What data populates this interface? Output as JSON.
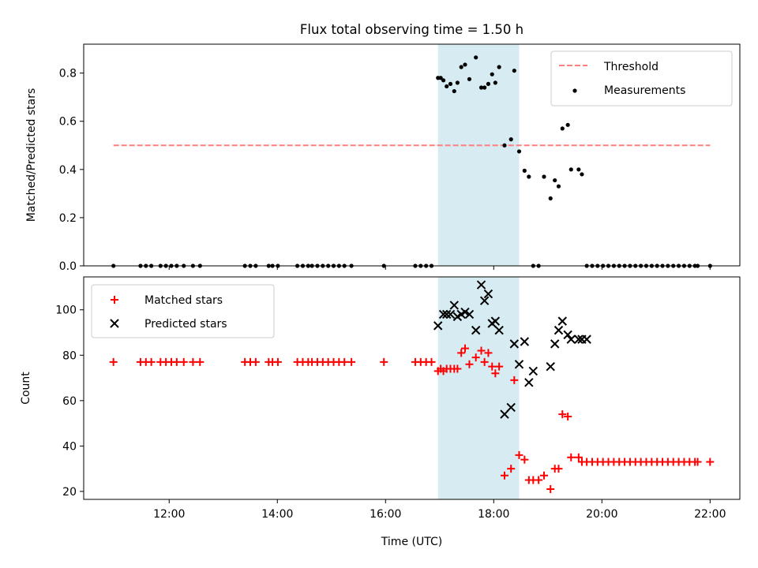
{
  "chart_data": [
    {
      "type": "scatter",
      "title": "Flux total observing time = 1.50 h",
      "xlabel": "",
      "ylabel": "Matched/Predicted stars",
      "xlim": [
        10.42,
        22.55
      ],
      "ylim": [
        0.0,
        0.92
      ],
      "x_ticks": [
        "12:00",
        "14:00",
        "16:00",
        "18:00",
        "20:00",
        "22:00"
      ],
      "x_tick_values": [
        12,
        14,
        16,
        18,
        20,
        22
      ],
      "y_ticks": [
        "0.0",
        "0.2",
        "0.4",
        "0.6",
        "0.8"
      ],
      "y_tick_values": [
        0.0,
        0.2,
        0.4,
        0.6,
        0.8
      ],
      "shaded_span": [
        16.97,
        18.47
      ],
      "legend_position": "top-right",
      "threshold": {
        "name": "Threshold",
        "value": 0.5,
        "x_range": [
          10.97,
          22.0
        ],
        "color": "#ff7f7f"
      },
      "series": [
        {
          "name": "Measurements",
          "color": "#000000",
          "marker": "dot",
          "x": [
            10.97,
            11.47,
            11.57,
            11.67,
            11.84,
            11.94,
            12.04,
            12.14,
            12.27,
            12.44,
            12.57,
            13.4,
            13.5,
            13.6,
            13.84,
            13.91,
            14.01,
            14.37,
            14.47,
            14.57,
            14.64,
            14.74,
            14.84,
            14.94,
            15.04,
            15.14,
            15.24,
            15.37,
            15.97,
            16.55,
            16.65,
            16.75,
            16.85,
            16.97,
            17.02,
            17.07,
            17.13,
            17.2,
            17.27,
            17.33,
            17.4,
            17.47,
            17.55,
            17.67,
            17.77,
            17.83,
            17.9,
            17.97,
            18.03,
            18.1,
            18.2,
            18.32,
            18.38,
            18.47,
            18.57,
            18.65,
            18.73,
            18.83,
            18.93,
            19.05,
            19.13,
            19.2,
            19.27,
            19.37,
            19.43,
            19.57,
            19.63,
            19.72,
            19.82,
            19.92,
            20.02,
            20.12,
            20.22,
            20.32,
            20.42,
            20.52,
            20.62,
            20.72,
            20.82,
            20.92,
            21.02,
            21.12,
            21.22,
            21.32,
            21.42,
            21.52,
            21.62,
            21.72,
            21.77,
            22.0
          ],
          "y": [
            0.0,
            0.0,
            0.0,
            0.0,
            0.0,
            0.0,
            0.0,
            0.0,
            0.0,
            0.0,
            0.0,
            0.0,
            0.0,
            0.0,
            0.0,
            0.0,
            0.0,
            0.0,
            0.0,
            0.0,
            0.0,
            0.0,
            0.0,
            0.0,
            0.0,
            0.0,
            0.0,
            0.0,
            0.0,
            0.0,
            0.0,
            0.0,
            0.0,
            0.78,
            0.78,
            0.77,
            0.745,
            0.755,
            0.725,
            0.76,
            0.825,
            0.835,
            0.775,
            0.865,
            0.74,
            0.74,
            0.755,
            0.795,
            0.76,
            0.825,
            0.5,
            0.525,
            0.81,
            0.475,
            0.395,
            0.37,
            0.0,
            0.0,
            0.37,
            0.28,
            0.355,
            0.33,
            0.57,
            0.585,
            0.4,
            0.4,
            0.38,
            0.0,
            0.0,
            0.0,
            0.0,
            0.0,
            0.0,
            0.0,
            0.0,
            0.0,
            0.0,
            0.0,
            0.0,
            0.0,
            0.0,
            0.0,
            0.0,
            0.0,
            0.0,
            0.0,
            0.0,
            0.0,
            0.0,
            0.0
          ]
        }
      ]
    },
    {
      "type": "scatter",
      "title": "",
      "xlabel": "Time (UTC)",
      "ylabel": "Count",
      "xlim": [
        10.42,
        22.55
      ],
      "ylim": [
        16.5,
        114.5
      ],
      "x_ticks": [
        "12:00",
        "14:00",
        "16:00",
        "18:00",
        "20:00",
        "22:00"
      ],
      "x_tick_values": [
        12,
        14,
        16,
        18,
        20,
        22
      ],
      "y_ticks": [
        "20",
        "40",
        "60",
        "80",
        "100"
      ],
      "y_tick_values": [
        20,
        40,
        60,
        80,
        100
      ],
      "shaded_span": [
        16.97,
        18.47
      ],
      "legend_position": "top-left",
      "series": [
        {
          "name": "Matched stars",
          "color": "#ff0000",
          "marker": "plus",
          "x": [
            10.97,
            11.47,
            11.57,
            11.67,
            11.84,
            11.94,
            12.04,
            12.14,
            12.27,
            12.44,
            12.57,
            13.4,
            13.5,
            13.6,
            13.84,
            13.91,
            14.01,
            14.37,
            14.47,
            14.57,
            14.64,
            14.74,
            14.84,
            14.94,
            15.04,
            15.14,
            15.24,
            15.37,
            15.97,
            16.55,
            16.65,
            16.75,
            16.85,
            16.97,
            17.02,
            17.07,
            17.13,
            17.2,
            17.27,
            17.33,
            17.4,
            17.47,
            17.55,
            17.67,
            17.77,
            17.83,
            17.9,
            17.97,
            18.03,
            18.1,
            18.2,
            18.32,
            18.38,
            18.47,
            18.57,
            18.65,
            18.73,
            18.83,
            18.93,
            19.05,
            19.13,
            19.2,
            19.27,
            19.37,
            19.43,
            19.57,
            19.63,
            19.72,
            19.82,
            19.92,
            20.02,
            20.12,
            20.22,
            20.32,
            20.42,
            20.52,
            20.62,
            20.72,
            20.82,
            20.92,
            21.02,
            21.12,
            21.22,
            21.32,
            21.42,
            21.52,
            21.62,
            21.72,
            21.77,
            22.0
          ],
          "y": [
            77,
            77,
            77,
            77,
            77,
            77,
            77,
            77,
            77,
            77,
            77,
            77,
            77,
            77,
            77,
            77,
            77,
            77,
            77,
            77,
            77,
            77,
            77,
            77,
            77,
            77,
            77,
            77,
            77,
            77,
            77,
            77,
            77,
            73,
            74,
            73,
            74,
            74,
            74,
            74,
            81,
            83,
            76,
            79,
            82,
            77,
            81,
            75,
            72,
            75,
            27,
            30,
            69,
            36,
            34,
            25,
            25,
            25,
            27,
            21,
            30,
            30,
            54,
            53,
            35,
            35,
            33,
            33,
            33,
            33,
            33,
            33,
            33,
            33,
            33,
            33,
            33,
            33,
            33,
            33,
            33,
            33,
            33,
            33,
            33,
            33,
            33,
            33,
            33,
            33
          ]
        },
        {
          "name": "Predicted stars",
          "color": "#000000",
          "marker": "x",
          "x": [
            16.97,
            17.07,
            17.13,
            17.2,
            17.27,
            17.33,
            17.4,
            17.47,
            17.55,
            17.67,
            17.77,
            17.83,
            17.9,
            17.97,
            18.03,
            18.1,
            18.2,
            18.32,
            18.38,
            18.47,
            18.57,
            18.65,
            18.73,
            19.05,
            19.13,
            19.2,
            19.27,
            19.37,
            19.43,
            19.57,
            19.63,
            19.72
          ],
          "y": [
            93,
            98,
            98,
            98,
            102,
            97,
            98,
            99,
            98,
            91,
            111,
            104,
            107,
            94,
            95,
            91,
            54,
            57,
            85,
            76,
            86,
            68,
            73,
            75,
            85,
            91,
            95,
            89,
            87,
            87,
            87,
            87
          ]
        }
      ]
    }
  ]
}
